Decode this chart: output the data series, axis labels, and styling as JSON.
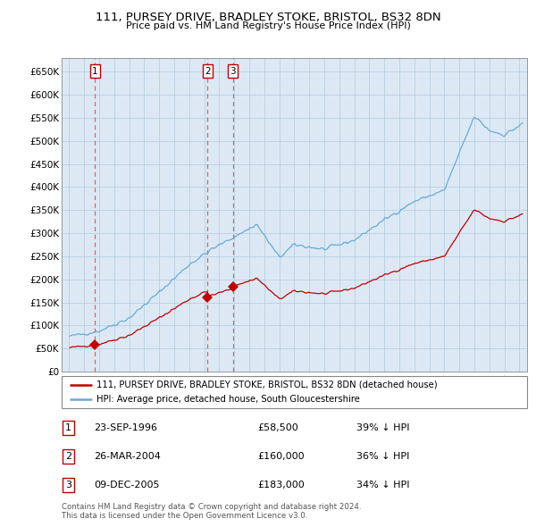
{
  "title1": "111, PURSEY DRIVE, BRADLEY STOKE, BRISTOL, BS32 8DN",
  "title2": "Price paid vs. HM Land Registry's House Price Index (HPI)",
  "ylim": [
    0,
    680000
  ],
  "xlim_start": 1994.5,
  "xlim_end": 2025.5,
  "yticks": [
    0,
    50000,
    100000,
    150000,
    200000,
    250000,
    300000,
    350000,
    400000,
    450000,
    500000,
    550000,
    600000,
    650000
  ],
  "ytick_labels": [
    "£0",
    "£50K",
    "£100K",
    "£150K",
    "£200K",
    "£250K",
    "£300K",
    "£350K",
    "£400K",
    "£450K",
    "£500K",
    "£550K",
    "£600K",
    "£650K"
  ],
  "xticks": [
    1995,
    1996,
    1997,
    1998,
    1999,
    2000,
    2001,
    2002,
    2003,
    2004,
    2005,
    2006,
    2007,
    2008,
    2009,
    2010,
    2011,
    2012,
    2013,
    2014,
    2015,
    2016,
    2017,
    2018,
    2019,
    2020,
    2021,
    2022,
    2023,
    2024,
    2025
  ],
  "sale_dates": [
    1996.73,
    2004.23,
    2005.92
  ],
  "sale_prices": [
    58500,
    160000,
    183000
  ],
  "sale_labels": [
    "1",
    "2",
    "3"
  ],
  "hpi_color": "#6aaad4",
  "sale_color": "#c00000",
  "vline_color": "#e06060",
  "bg_color": "#dce9f5",
  "grid_color": "#b8cfe0",
  "legend_sale": "111, PURSEY DRIVE, BRADLEY STOKE, BRISTOL, BS32 8DN (detached house)",
  "legend_hpi": "HPI: Average price, detached house, South Gloucestershire",
  "table_data": [
    [
      "1",
      "23-SEP-1996",
      "£58,500",
      "39% ↓ HPI"
    ],
    [
      "2",
      "26-MAR-2004",
      "£160,000",
      "36% ↓ HPI"
    ],
    [
      "3",
      "09-DEC-2005",
      "£183,000",
      "34% ↓ HPI"
    ]
  ],
  "footnote": "Contains HM Land Registry data © Crown copyright and database right 2024.\nThis data is licensed under the Open Government Licence v3.0."
}
